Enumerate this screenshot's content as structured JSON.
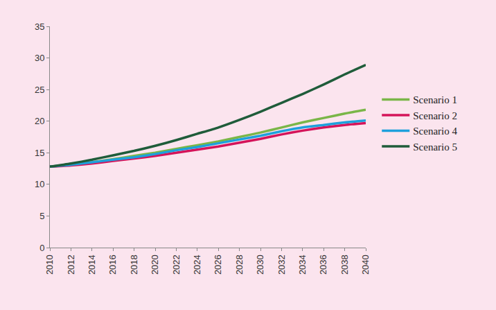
{
  "chart_data": {
    "type": "line",
    "x": [
      2010,
      2012,
      2014,
      2016,
      2018,
      2020,
      2022,
      2024,
      2026,
      2028,
      2030,
      2032,
      2034,
      2036,
      2038,
      2040
    ],
    "series": [
      {
        "name": "Scenario 1",
        "color": "#7ab648",
        "values": [
          12.8,
          13.1,
          13.5,
          14.0,
          14.5,
          15.0,
          15.6,
          16.2,
          16.8,
          17.5,
          18.2,
          19.0,
          19.8,
          20.5,
          21.2,
          21.8
        ]
      },
      {
        "name": "Scenario 2",
        "color": "#d4145a",
        "values": [
          12.8,
          13.0,
          13.3,
          13.7,
          14.1,
          14.5,
          15.0,
          15.5,
          16.0,
          16.6,
          17.2,
          17.9,
          18.5,
          19.0,
          19.4,
          19.7
        ]
      },
      {
        "name": "Scenario 4",
        "color": "#1ea0dc",
        "values": [
          12.8,
          13.1,
          13.5,
          13.9,
          14.3,
          14.8,
          15.4,
          15.9,
          16.5,
          17.1,
          17.7,
          18.4,
          19.0,
          19.4,
          19.8,
          20.1
        ]
      },
      {
        "name": "Scenario 5",
        "color": "#1f5c3a",
        "values": [
          12.8,
          13.3,
          13.9,
          14.6,
          15.3,
          16.1,
          17.0,
          18.0,
          19.0,
          20.2,
          21.5,
          22.9,
          24.3,
          25.8,
          27.4,
          28.9
        ]
      }
    ],
    "xlim": [
      2010,
      2040
    ],
    "xticks": [
      2010,
      2012,
      2014,
      2016,
      2018,
      2020,
      2022,
      2024,
      2026,
      2028,
      2030,
      2032,
      2034,
      2036,
      2038,
      2040
    ],
    "ylim": [
      0,
      35
    ],
    "yticks": [
      0,
      5,
      10,
      15,
      20,
      25,
      30,
      35
    ],
    "grid": false,
    "legend": "right"
  }
}
